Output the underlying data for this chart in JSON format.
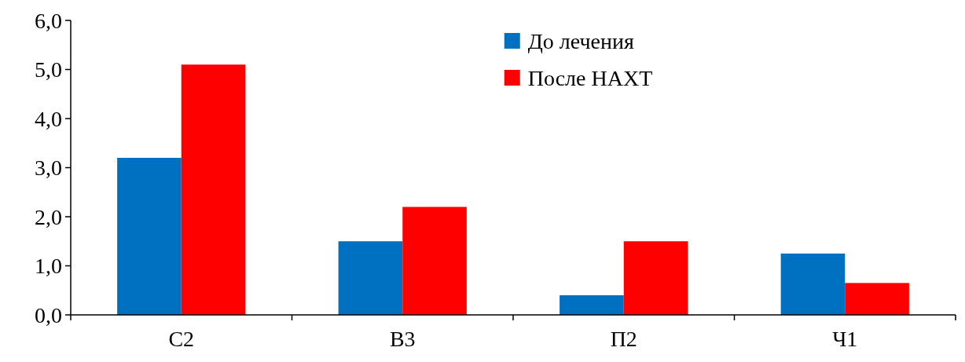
{
  "chart_data": {
    "type": "bar",
    "categories": [
      "С2",
      "В3",
      "П2",
      "Ч1"
    ],
    "series": [
      {
        "name": "До лечения",
        "color": "#0070c0",
        "values": [
          3.2,
          1.5,
          0.4,
          1.25
        ]
      },
      {
        "name": "После НАХТ",
        "color": "#ff0000",
        "values": [
          5.1,
          2.2,
          1.5,
          0.65
        ]
      }
    ],
    "ylim": [
      0,
      6
    ],
    "yticks": [
      {
        "value": 0,
        "label": "0,0"
      },
      {
        "value": 1,
        "label": "1,0"
      },
      {
        "value": 2,
        "label": "2,0"
      },
      {
        "value": 3,
        "label": "3,0"
      },
      {
        "value": 4,
        "label": "4,0"
      },
      {
        "value": 5,
        "label": "5,0"
      },
      {
        "value": 6,
        "label": "6,0"
      }
    ],
    "grid": false,
    "legend": "top"
  }
}
